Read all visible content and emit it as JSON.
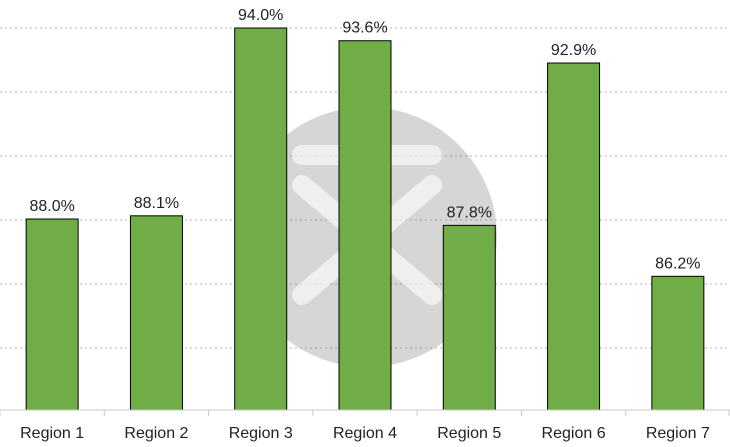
{
  "chart_data": {
    "type": "bar",
    "categories": [
      "Region 1",
      "Region 2",
      "Region 3",
      "Region 4",
      "Region 5",
      "Region 6",
      "Region 7"
    ],
    "values": [
      88.0,
      88.1,
      94.0,
      93.6,
      87.8,
      92.9,
      86.2
    ],
    "data_labels": [
      "88.0%",
      "88.1%",
      "94.0%",
      "93.6%",
      "87.8%",
      "92.9%",
      "86.2%"
    ],
    "ylim": [
      82,
      94
    ],
    "grid": true,
    "bar_color": "#70ad47",
    "bar_outline": "#000000",
    "watermark": "logo-watermark"
  }
}
